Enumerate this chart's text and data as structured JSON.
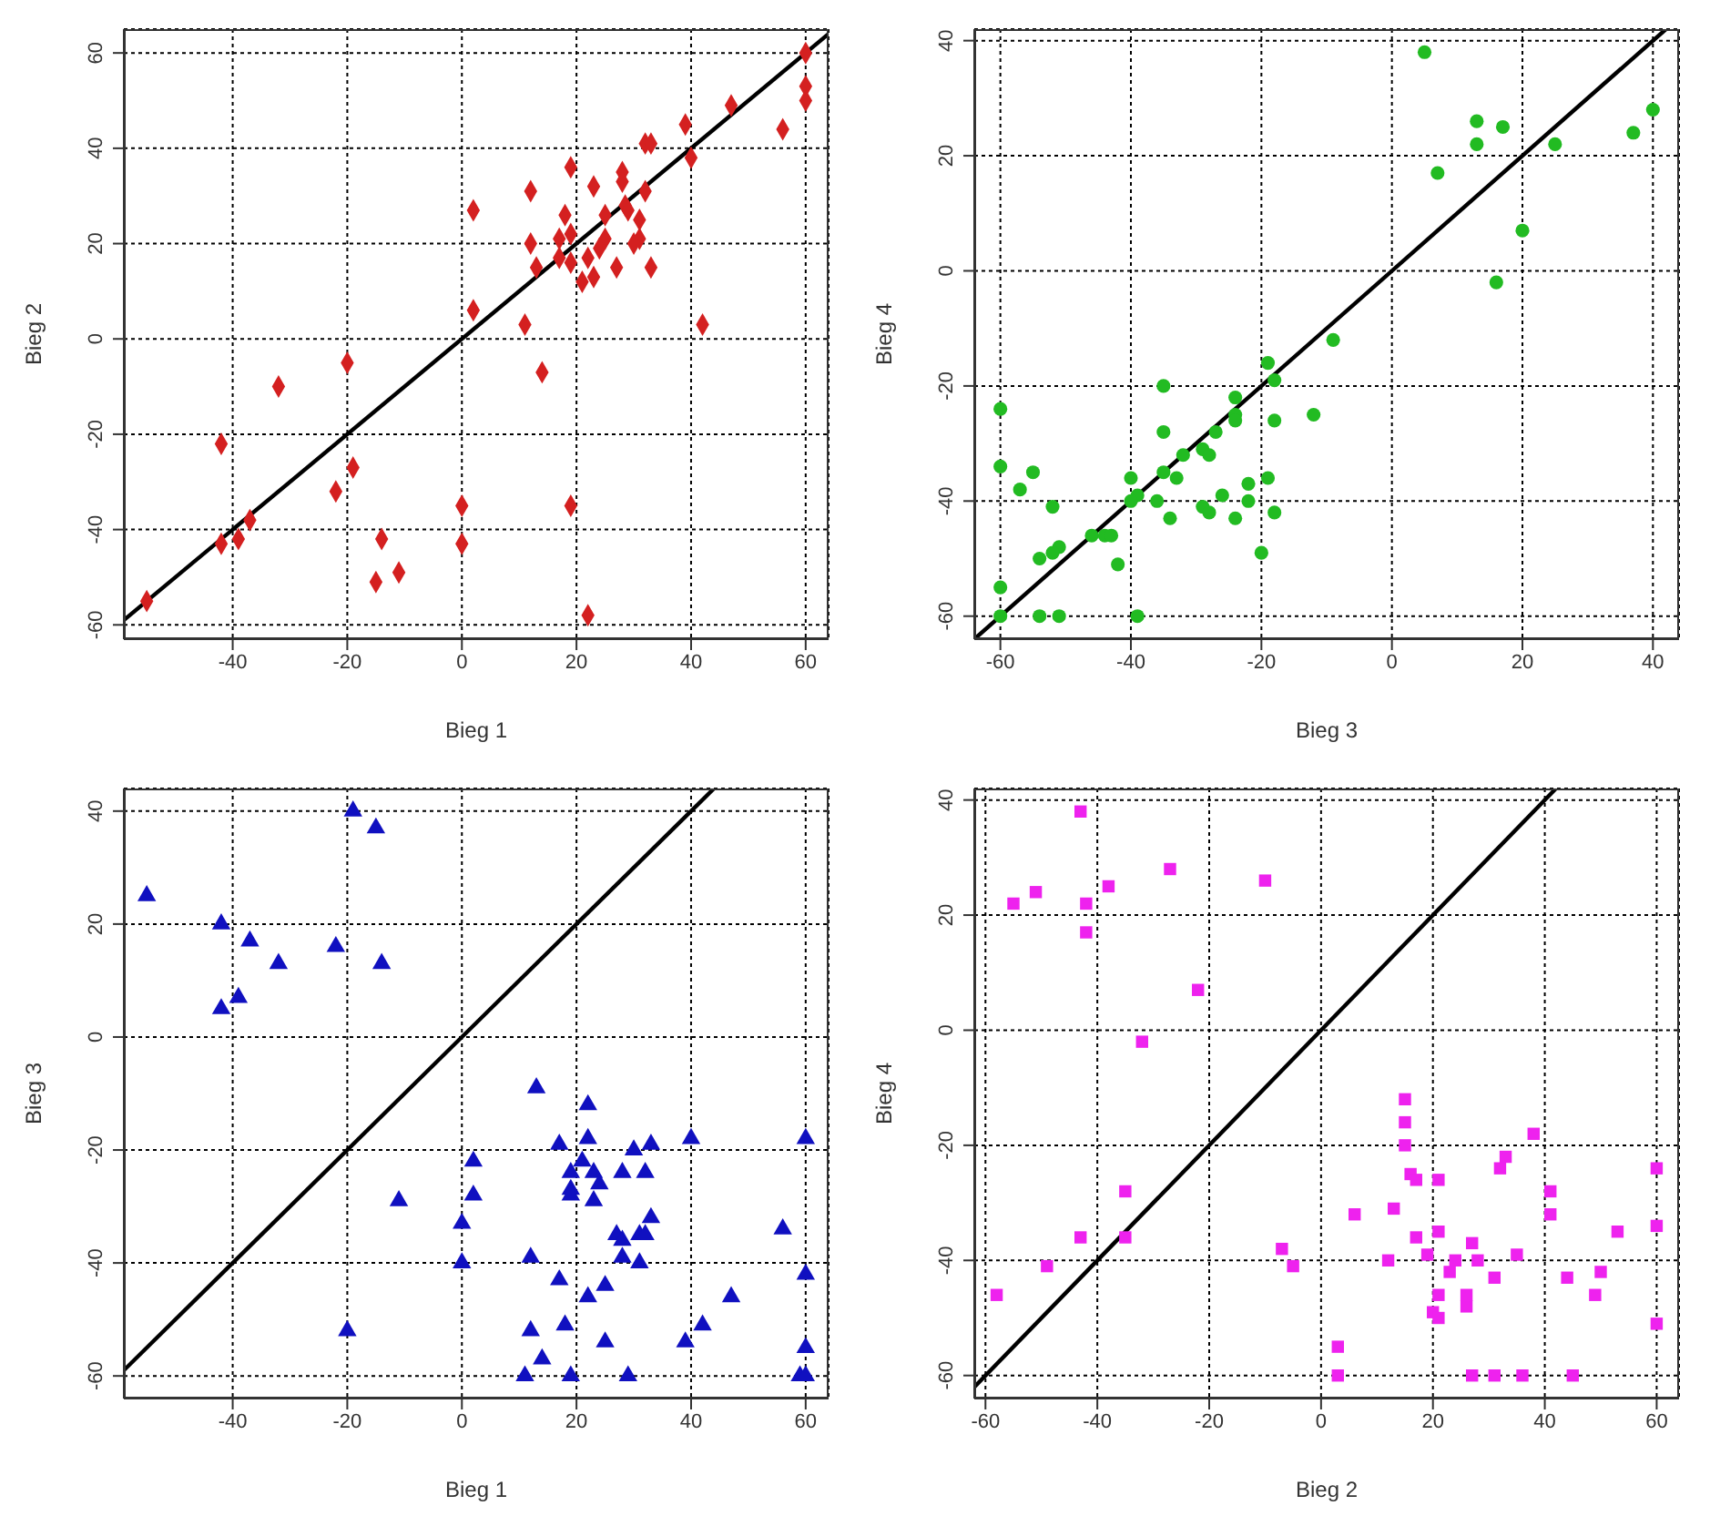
{
  "chart_data": [
    {
      "type": "scatter",
      "xlabel": "Bieg 1",
      "ylabel": "Bieg 2",
      "xlim": [
        -59,
        64
      ],
      "ylim": [
        -63,
        65
      ],
      "xticks": [
        -40,
        -20,
        0,
        20,
        40,
        60
      ],
      "yticks": [
        -60,
        -40,
        -20,
        0,
        20,
        40,
        60
      ],
      "grid": true,
      "series": [
        {
          "type": "scatter",
          "color": "#d42020",
          "marker": "diamond",
          "x": [
            60,
            60,
            60,
            56,
            47,
            39,
            40,
            32,
            33,
            28,
            28,
            32,
            28.5,
            29,
            31,
            31,
            30,
            33,
            27,
            25,
            25,
            23,
            19,
            18,
            19,
            17,
            12,
            12,
            13,
            19,
            17,
            22,
            24,
            21,
            23,
            2,
            2,
            11,
            42,
            14,
            19,
            22,
            -20,
            -32,
            -42,
            -19,
            -22,
            0,
            0,
            -14,
            -11,
            -15,
            -37,
            -39,
            -42,
            -55
          ],
          "values": [
            60,
            53,
            50,
            44,
            49,
            45,
            38,
            41,
            41,
            35,
            33,
            31,
            28,
            27,
            25,
            21,
            20,
            15,
            15,
            21,
            26,
            32,
            36,
            26,
            22,
            21,
            31,
            20,
            15,
            16,
            17,
            17,
            19,
            12,
            13,
            27,
            6,
            3,
            3,
            -7,
            -35,
            -58,
            -5,
            -10,
            -22,
            -27,
            -32,
            -35,
            -43,
            -42,
            -49,
            -51,
            -38,
            -42,
            -43,
            -55
          ]
        },
        {
          "type": "line",
          "color": "#000000",
          "marker": "none",
          "x": [
            -59,
            64
          ],
          "values": [
            -59,
            64
          ]
        }
      ]
    },
    {
      "type": "scatter",
      "xlabel": "Bieg 3",
      "ylabel": "Bieg 4",
      "xlim": [
        -64,
        44
      ],
      "ylim": [
        -64,
        42
      ],
      "xticks": [
        -60,
        -40,
        -20,
        0,
        20,
        40
      ],
      "yticks": [
        -60,
        -40,
        -20,
        0,
        20,
        40
      ],
      "grid": true,
      "series": [
        {
          "type": "scatter",
          "color": "#22bb22",
          "marker": "circle",
          "x": [
            5,
            13,
            13,
            17,
            7,
            25,
            37,
            40,
            20,
            16,
            -9,
            -12,
            -19,
            -18,
            -18,
            -19,
            -18,
            -22,
            -22,
            -20,
            -24,
            -24,
            -24,
            -27,
            -24,
            -26,
            -29,
            -28,
            -29,
            -28,
            -32,
            -33,
            -35,
            -35,
            -35,
            -36,
            -34,
            -40,
            -39,
            -40,
            -42,
            -46,
            -44,
            -43,
            -39,
            -51,
            -52,
            -54,
            -52,
            -55,
            -57,
            -60,
            -60,
            -60,
            -60,
            -54,
            -51
          ],
          "values": [
            38,
            26,
            22,
            25,
            17,
            22,
            24,
            28,
            7,
            -2,
            -12,
            -25,
            -16,
            -19,
            -26,
            -36,
            -42,
            -37,
            -40,
            -49,
            -22,
            -25,
            -26,
            -28,
            -43,
            -39,
            -31,
            -32,
            -41,
            -42,
            -32,
            -36,
            -20,
            -28,
            -35,
            -40,
            -43,
            -36,
            -39,
            -40,
            -51,
            -46,
            -46,
            -46,
            -60,
            -48,
            -49,
            -50,
            -41,
            -35,
            -38,
            -24,
            -34,
            -55,
            -60,
            -60,
            -60
          ]
        },
        {
          "type": "line",
          "color": "#000000",
          "marker": "none",
          "x": [
            -64,
            42
          ],
          "values": [
            -64,
            42
          ]
        }
      ]
    },
    {
      "type": "scatter",
      "xlabel": "Bieg 1",
      "ylabel": "Bieg 3",
      "xlim": [
        -59,
        64
      ],
      "ylim": [
        -64,
        44
      ],
      "xticks": [
        -40,
        -20,
        0,
        20,
        40,
        60
      ],
      "yticks": [
        -60,
        -40,
        -20,
        0,
        20,
        40
      ],
      "grid": true,
      "series": [
        {
          "type": "scatter",
          "color": "#1010c0",
          "marker": "triangle",
          "x": [
            -55,
            -42,
            -37,
            -32,
            -39,
            -42,
            -22,
            -19,
            -15,
            -14,
            -20,
            -11,
            2,
            2,
            0,
            0,
            13,
            12,
            17,
            22,
            22,
            21,
            19,
            19,
            19,
            23,
            24,
            23,
            28,
            30,
            33,
            32,
            33,
            27,
            28,
            31,
            32,
            28,
            31,
            25,
            17,
            22,
            18,
            12,
            25,
            14,
            11,
            19,
            29,
            39,
            42,
            47,
            40,
            56,
            60,
            60,
            60,
            59,
            60
          ],
          "values": [
            25,
            20,
            17,
            13,
            7,
            5,
            16,
            40,
            37,
            13,
            -52,
            -29,
            -22,
            -28,
            -33,
            -40,
            -9,
            -39,
            -19,
            -12,
            -18,
            -22,
            -24,
            -27,
            -28,
            -24,
            -26,
            -29,
            -24,
            -20,
            -19,
            -24,
            -32,
            -35,
            -36,
            -35,
            -35,
            -39,
            -40,
            -44,
            -43,
            -46,
            -51,
            -52,
            -54,
            -57,
            -60,
            -60,
            -60,
            -54,
            -51,
            -46,
            -18,
            -34,
            -18,
            -42,
            -55,
            -60,
            -60
          ]
        },
        {
          "type": "line",
          "color": "#000000",
          "marker": "none",
          "x": [
            -59,
            44
          ],
          "values": [
            -59,
            44
          ]
        }
      ]
    },
    {
      "type": "scatter",
      "xlabel": "Bieg 2",
      "ylabel": "Bieg 4",
      "xlim": [
        -62,
        64
      ],
      "ylim": [
        -64,
        42
      ],
      "xticks": [
        -60,
        -40,
        -20,
        0,
        20,
        40,
        60
      ],
      "yticks": [
        -60,
        -40,
        -20,
        0,
        20,
        40
      ],
      "grid": true,
      "series": [
        {
          "type": "scatter",
          "color": "#ee22ee",
          "marker": "square",
          "x": [
            -43,
            -55,
            -51,
            -42,
            -42,
            -38,
            -27,
            -10,
            -22,
            -32,
            -35,
            -35,
            -43,
            -49,
            -58,
            -7,
            -5,
            3,
            3,
            6,
            12,
            13,
            15,
            15,
            15,
            16,
            17,
            17,
            19,
            21,
            21,
            21,
            20,
            21,
            23,
            24,
            28,
            27,
            26,
            26,
            31,
            27,
            31,
            36,
            35,
            32,
            33,
            38,
            41,
            41,
            44,
            45,
            50,
            49,
            53,
            60,
            60,
            60
          ],
          "values": [
            38,
            22,
            24,
            22,
            17,
            25,
            28,
            26,
            7,
            -2,
            -28,
            -36,
            -36,
            -41,
            -46,
            -38,
            -41,
            -55,
            -60,
            -32,
            -40,
            -31,
            -12,
            -16,
            -20,
            -25,
            -26,
            -36,
            -39,
            -26,
            -35,
            -46,
            -49,
            -50,
            -42,
            -40,
            -40,
            -37,
            -46,
            -48,
            -43,
            -60,
            -60,
            -60,
            -39,
            -24,
            -22,
            -18,
            -28,
            -32,
            -43,
            -60,
            -42,
            -46,
            -35,
            -24,
            -34,
            -51
          ]
        },
        {
          "type": "line",
          "color": "#000000",
          "marker": "none",
          "x": [
            -62,
            42
          ],
          "values": [
            -62,
            42
          ]
        }
      ]
    }
  ]
}
